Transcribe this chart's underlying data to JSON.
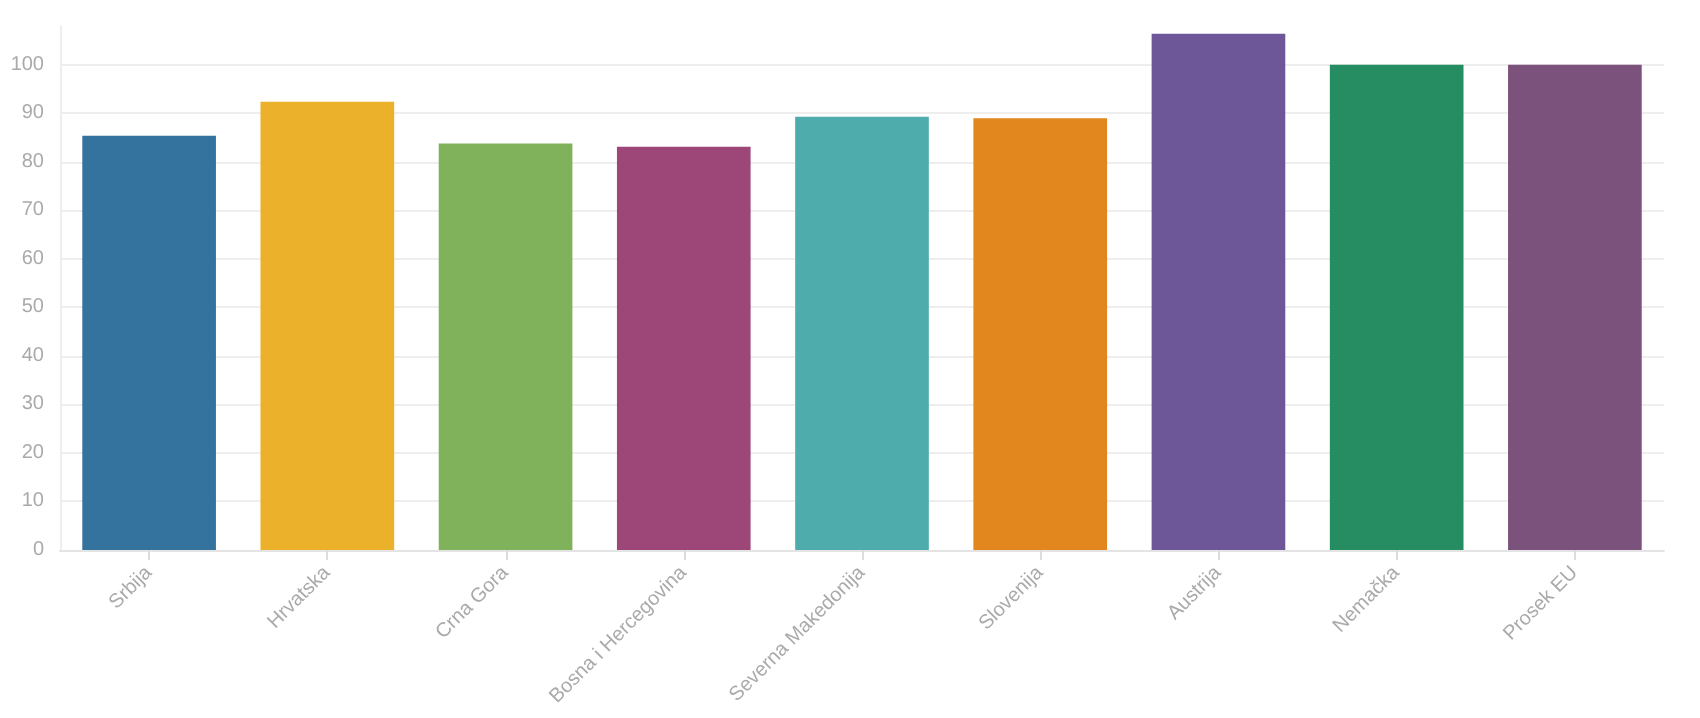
{
  "chart_data": {
    "type": "bar",
    "categories": [
      "Srbija",
      "Hrvatska",
      "Crna Gora",
      "Bosna i Hercegovina",
      "Severna Makedonija",
      "Slovenija",
      "Austrija",
      "Nemačka",
      "Prosek EU"
    ],
    "values": [
      85.4,
      92.4,
      83.8,
      83.1,
      89.3,
      89.0,
      106.4,
      100,
      100
    ],
    "colors": [
      "#34739d",
      "#ebb12a",
      "#80b25b",
      "#9c4778",
      "#4eadac",
      "#e2861e",
      "#6e5798",
      "#268c62",
      "#7b527c"
    ],
    "ylim": [
      0,
      108
    ],
    "yticks": [
      0,
      10,
      20,
      30,
      40,
      50,
      60,
      70,
      80,
      90,
      100
    ],
    "grid": "y"
  }
}
